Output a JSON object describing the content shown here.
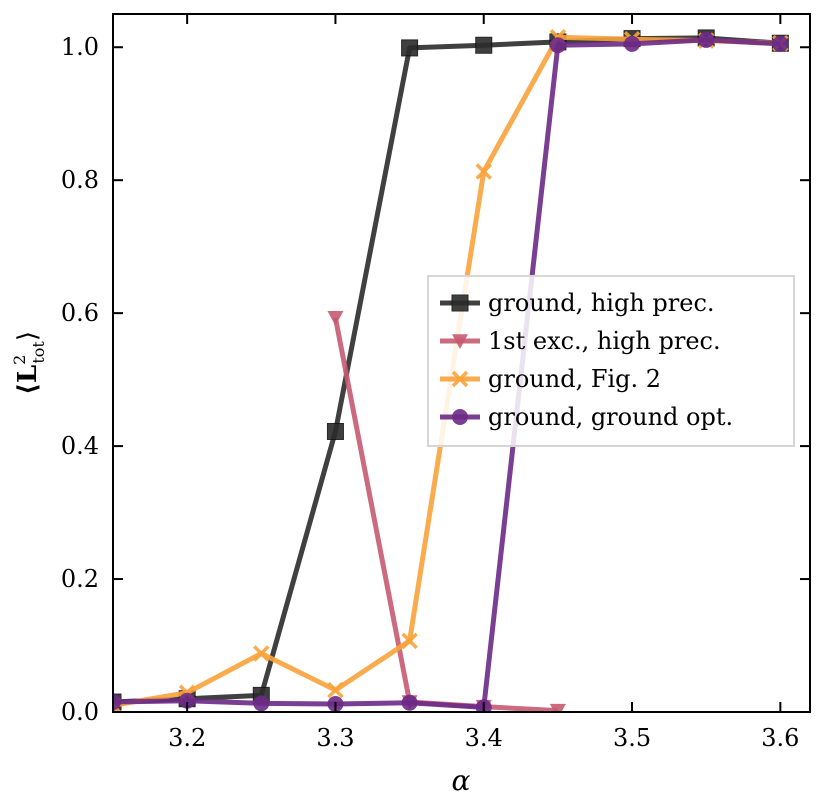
{
  "chart_data": {
    "type": "line",
    "title": "",
    "xlabel": "α",
    "ylabel_main": "⟨L",
    "ylabel_sup": "2",
    "ylabel_sub": "tot",
    "ylabel_close": "⟩",
    "xlim": [
      3.15,
      3.62
    ],
    "ylim": [
      0.0,
      1.05
    ],
    "xticks": [
      3.2,
      3.3,
      3.4,
      3.5,
      3.6
    ],
    "xtick_labels": [
      "3.2",
      "3.3",
      "3.4",
      "3.5",
      "3.6"
    ],
    "yticks": [
      0.0,
      0.2,
      0.4,
      0.6,
      0.8,
      1.0
    ],
    "ytick_labels": [
      "0.0",
      "0.2",
      "0.4",
      "0.6",
      "0.8",
      "1.0"
    ],
    "grid": false,
    "legend_position": "center-right",
    "series": [
      {
        "name": "ground, high prec.",
        "color": "#2b2b2b",
        "marker": "square",
        "x": [
          3.15,
          3.2,
          3.25,
          3.3,
          3.35,
          3.4,
          3.45,
          3.5,
          3.55,
          3.6
        ],
        "y": [
          0.015,
          0.02,
          0.025,
          0.422,
          0.999,
          1.003,
          1.008,
          1.013,
          1.014,
          1.006
        ]
      },
      {
        "name": "1st exc., high prec.",
        "color": "#c65a72",
        "marker": "triangle-down",
        "x": [
          3.3,
          3.35,
          3.4,
          3.45
        ],
        "y": [
          0.593,
          0.015,
          0.008,
          0.002
        ]
      },
      {
        "name": "ground, Fig. 2",
        "color": "#f9a23a",
        "marker": "x",
        "x": [
          3.15,
          3.2,
          3.25,
          3.3,
          3.35,
          3.4,
          3.45,
          3.5,
          3.55,
          3.6
        ],
        "y": [
          0.01,
          0.029,
          0.088,
          0.033,
          0.107,
          0.813,
          1.015,
          1.012,
          1.01,
          1.006
        ]
      },
      {
        "name": "ground, ground opt.",
        "color": "#6b2a86",
        "marker": "circle",
        "x": [
          3.15,
          3.2,
          3.25,
          3.3,
          3.35,
          3.4,
          3.45,
          3.5,
          3.55,
          3.6
        ],
        "y": [
          0.015,
          0.017,
          0.013,
          0.012,
          0.014,
          0.007,
          1.003,
          1.005,
          1.011,
          1.005
        ]
      }
    ]
  }
}
